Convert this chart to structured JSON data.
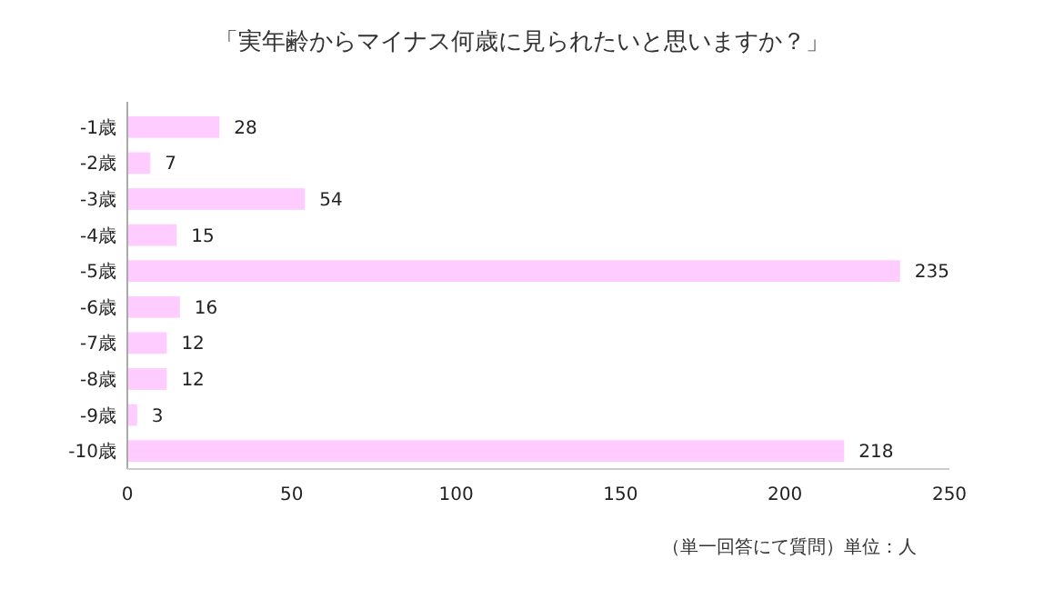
{
  "chart_data": {
    "type": "bar",
    "orientation": "horizontal",
    "title": "「実年齢からマイナス何歳に見られたいと思いますか？」",
    "categories": [
      "-1歳",
      "-2歳",
      "-3歳",
      "-4歳",
      "-5歳",
      "-6歳",
      "-7歳",
      "-8歳",
      "-9歳",
      "-10歳"
    ],
    "values": [
      28,
      7,
      54,
      15,
      235,
      16,
      12,
      12,
      3,
      218
    ],
    "color": "#ffccff",
    "xlim": [
      0,
      250
    ],
    "xticks": [
      0,
      50,
      100,
      150,
      200,
      250
    ],
    "grid": false,
    "data_labels": true,
    "annotations": [
      "（単一回答にて質問）単位：人"
    ]
  }
}
